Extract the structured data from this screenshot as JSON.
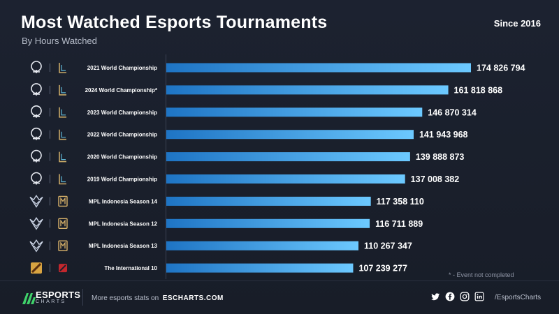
{
  "header": {
    "title": "Most Watched Esports Tournaments",
    "subtitle": "By Hours Watched",
    "since": "Since 2016"
  },
  "footnote": "* - Event not completed",
  "footer": {
    "brand_top": "ESPORTS",
    "brand_bottom": "CHARTS",
    "link_prefix": "More esports stats on",
    "link_domain": "ESCHARTS.COM",
    "handle": "/EsportsCharts",
    "social_icons": [
      "twitter-icon",
      "facebook-icon",
      "instagram-icon",
      "linkedin-icon"
    ]
  },
  "colors": {
    "background": "#1a1f2b",
    "bar_start": "#1e74c4",
    "bar_end": "#6cc9ff"
  },
  "chart_data": {
    "type": "bar",
    "orientation": "horizontal",
    "categories": [
      "2021 World Championship",
      "2024 World Championship*",
      "2023 World Championship",
      "2022 World Championship",
      "2020 World Championship",
      "2019 World Championship",
      "MPL Indonesia Season 14",
      "MPL Indonesia Season 12",
      "MPL Indonesia Season 13",
      "The International 10"
    ],
    "values": [
      174826794,
      161818868,
      146870314,
      141943968,
      139888873,
      137008382,
      117358110,
      116711889,
      110267347,
      107239277
    ],
    "value_labels": [
      "174 826 794",
      "161 818 868",
      "146 870 314",
      "141 943 968",
      "139 888 873",
      "137 008 382",
      "117 358 110",
      "116 711 889",
      "110 267 347",
      "107 239 277"
    ],
    "games": [
      "lol",
      "lol",
      "lol",
      "lol",
      "lol",
      "lol",
      "mlbb",
      "mlbb",
      "mlbb",
      "dota2"
    ],
    "xlim": [
      0,
      174826794
    ],
    "grid": false,
    "legend": "none"
  }
}
